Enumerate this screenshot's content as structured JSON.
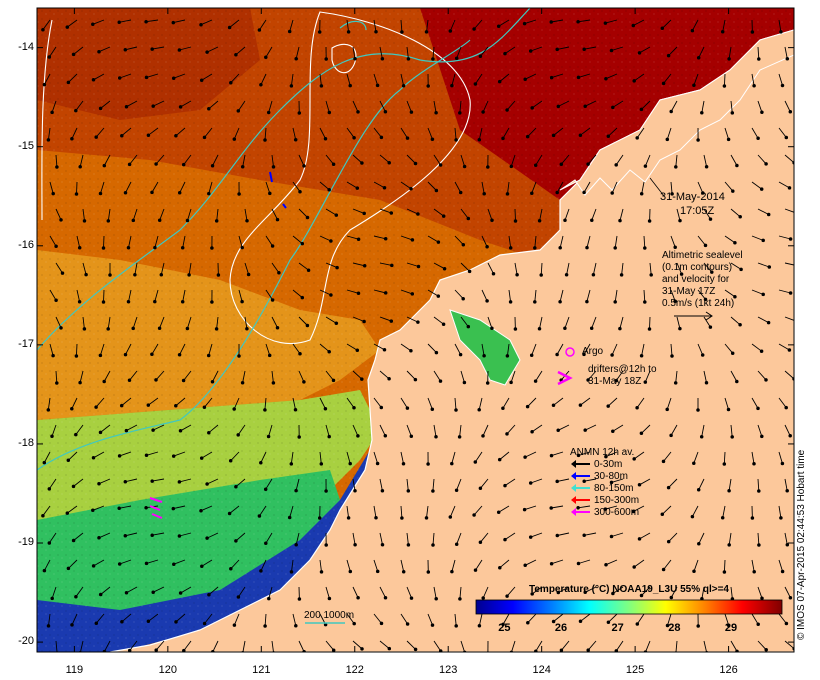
{
  "map": {
    "lon_ticks": [
      "119",
      "120",
      "121",
      "122",
      "123",
      "124",
      "125",
      "126"
    ],
    "lat_ticks": [
      "-14",
      "-15",
      "-16",
      "-17",
      "-18",
      "-19",
      "-20"
    ],
    "lon_range": [
      118.6,
      126.7
    ],
    "lat_range": [
      -20.1,
      -13.6
    ]
  },
  "annotations": {
    "date_line1": "31-May-2014",
    "date_line2": "17:05Z",
    "altimetric": [
      "Altimetric sealevel",
      "(0.1m contours)",
      "and velocity for",
      "31-May 17Z",
      "0.5m/s (1kt 24h)"
    ],
    "argo": "Argo",
    "drifters": [
      "drifters@12h to",
      "31-May 18Z"
    ],
    "isobath": "200  1000m"
  },
  "legend": {
    "title": "ANMN 12h av.",
    "items": [
      {
        "label": "0-30m",
        "color": "#000000"
      },
      {
        "label": "30-80m",
        "color": "#0000ff"
      },
      {
        "label": "80-150m",
        "color": "#40e0d0"
      },
      {
        "label": "150-300m",
        "color": "#ff0000"
      },
      {
        "label": "300-600m",
        "color": "#ff00ff"
      }
    ]
  },
  "colorbar": {
    "title": "Temperature (°C) NOAA19_L3U 55% ql>=4",
    "ticks": [
      "25",
      "26",
      "27",
      "28",
      "29"
    ],
    "range": [
      24.5,
      29.9
    ]
  },
  "credit": "© IMOS 07-Apr-2015 02:44:53 Hobart time",
  "colors": {
    "land": "#fcc89b",
    "hot": "#a50000",
    "warm": "#d45a00",
    "mid": "#e6a01c",
    "cool": "#b4d83a",
    "cold": "#22c060",
    "coldest": "#1028a8"
  }
}
